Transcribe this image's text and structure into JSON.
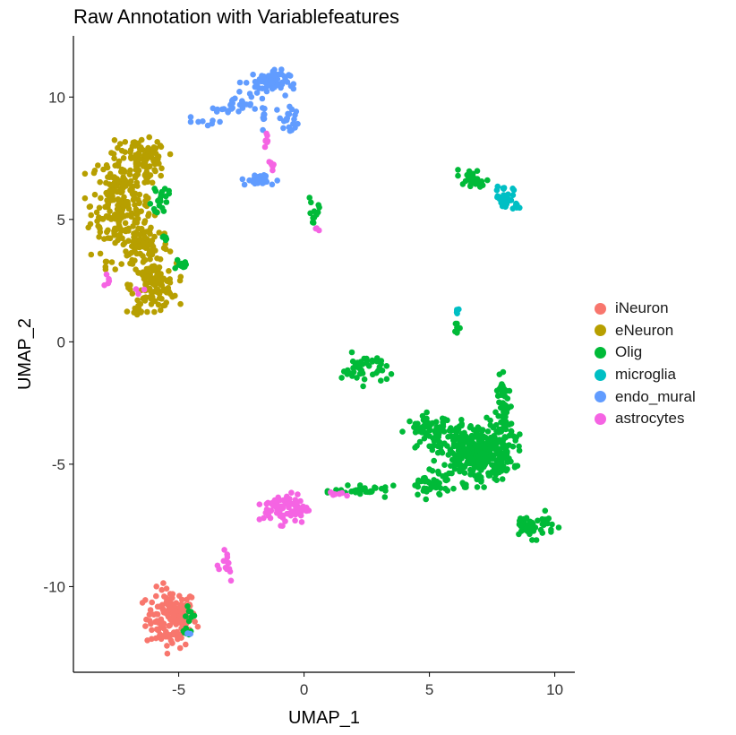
{
  "title": "Raw Annotation with Variablefeatures",
  "colors": {
    "iNeuron": "#F8766D",
    "eNeuron": "#B79F00",
    "Olig": "#00BA38",
    "microglia": "#00BFC4",
    "endo_mural": "#619CFF",
    "astrocytes": "#F564E3"
  },
  "chart_data": {
    "type": "scatter",
    "title": "Raw Annotation with Variablefeatures",
    "xlabel": "UMAP_1",
    "ylabel": "UMAP_2",
    "xlim": [
      -9.2,
      10.8
    ],
    "ylim": [
      -13.5,
      12.5
    ],
    "xticks": [
      -5,
      0,
      5,
      10
    ],
    "yticks": [
      -10,
      -5,
      0,
      5,
      10
    ],
    "grid": false,
    "legend_position": "right",
    "legend": [
      "iNeuron",
      "eNeuron",
      "Olig",
      "microglia",
      "endo_mural",
      "astrocytes"
    ],
    "series": [
      {
        "name": "iNeuron",
        "color": "#F8766D",
        "clusters": [
          {
            "cx": -5.3,
            "cy": -11.3,
            "rx": 1.0,
            "ry": 1.2,
            "n": 150
          }
        ]
      },
      {
        "name": "eNeuron",
        "color": "#B79F00",
        "clusters": [
          {
            "cx": -7.3,
            "cy": 5.6,
            "rx": 1.2,
            "ry": 2.2,
            "n": 250
          },
          {
            "cx": -6.3,
            "cy": 7.4,
            "rx": 0.8,
            "ry": 0.8,
            "n": 80
          },
          {
            "cx": -6.0,
            "cy": 2.3,
            "rx": 0.9,
            "ry": 0.9,
            "n": 120
          },
          {
            "cx": -6.3,
            "cy": 4.0,
            "rx": 0.9,
            "ry": 1.0,
            "n": 80
          },
          {
            "cx": -6.7,
            "cy": 1.2,
            "rx": 0.3,
            "ry": 0.3,
            "n": 8
          }
        ]
      },
      {
        "name": "Olig",
        "color": "#00BA38",
        "clusters": [
          {
            "cx": 6.8,
            "cy": -4.5,
            "rx": 1.5,
            "ry": 1.2,
            "n": 350
          },
          {
            "cx": 8.0,
            "cy": -3.0,
            "rx": 0.3,
            "ry": 1.6,
            "n": 70
          },
          {
            "cx": 5.0,
            "cy": -3.6,
            "rx": 0.9,
            "ry": 0.6,
            "n": 60
          },
          {
            "cx": 2.4,
            "cy": -1.1,
            "rx": 0.9,
            "ry": 0.6,
            "n": 45
          },
          {
            "cx": 9.1,
            "cy": -7.5,
            "rx": 0.9,
            "ry": 0.5,
            "n": 45
          },
          {
            "cx": 2.5,
            "cy": -6.1,
            "rx": 1.3,
            "ry": 0.2,
            "n": 30
          },
          {
            "cx": 5.0,
            "cy": -5.9,
            "rx": 0.8,
            "ry": 0.5,
            "n": 40
          },
          {
            "cx": 6.8,
            "cy": 6.5,
            "rx": 0.7,
            "ry": 0.4,
            "n": 20
          },
          {
            "cx": 6.1,
            "cy": 0.6,
            "rx": 0.1,
            "ry": 0.4,
            "n": 8
          },
          {
            "cx": -5.8,
            "cy": 5.7,
            "rx": 0.3,
            "ry": 0.6,
            "n": 15
          },
          {
            "cx": -4.9,
            "cy": 3.1,
            "rx": 0.2,
            "ry": 0.2,
            "n": 10
          },
          {
            "cx": -4.6,
            "cy": -11.4,
            "rx": 0.2,
            "ry": 0.5,
            "n": 12
          },
          {
            "cx": 0.4,
            "cy": 5.3,
            "rx": 0.3,
            "ry": 0.7,
            "n": 12
          },
          {
            "cx": -5.5,
            "cy": 4.3,
            "rx": 0.2,
            "ry": 0.2,
            "n": 5
          },
          {
            "cx": -4.8,
            "cy": -11.9,
            "rx": 0.15,
            "ry": 0.15,
            "n": 3
          },
          {
            "cx": -5.5,
            "cy": 6.2,
            "rx": 0.3,
            "ry": 0.2,
            "n": 5
          },
          {
            "cx": 6.5,
            "cy": 6.9,
            "rx": 0.3,
            "ry": 0.2,
            "n": 6
          }
        ]
      },
      {
        "name": "microglia",
        "color": "#00BFC4",
        "clusters": [
          {
            "cx": 8.0,
            "cy": 5.9,
            "rx": 0.35,
            "ry": 0.5,
            "n": 40
          },
          {
            "cx": 8.5,
            "cy": 5.5,
            "rx": 0.15,
            "ry": 0.2,
            "n": 6
          },
          {
            "cx": 6.1,
            "cy": 1.3,
            "rx": 0.12,
            "ry": 0.12,
            "n": 5
          }
        ]
      },
      {
        "name": "endo_mural",
        "color": "#619CFF",
        "clusters": [
          {
            "cx": -1.5,
            "cy": 10.6,
            "rx": 0.9,
            "ry": 0.5,
            "n": 60
          },
          {
            "cx": -2.8,
            "cy": 9.6,
            "rx": 0.7,
            "ry": 0.4,
            "n": 25
          },
          {
            "cx": -0.6,
            "cy": 9.0,
            "rx": 0.4,
            "ry": 0.6,
            "n": 20
          },
          {
            "cx": -1.8,
            "cy": 6.6,
            "rx": 0.7,
            "ry": 0.25,
            "n": 25
          },
          {
            "cx": -1.6,
            "cy": 9.3,
            "rx": 0.15,
            "ry": 0.6,
            "n": 10
          },
          {
            "cx": -3.8,
            "cy": 9.0,
            "rx": 0.6,
            "ry": 0.2,
            "n": 8
          },
          {
            "cx": -4.7,
            "cy": -11.9,
            "rx": 0.15,
            "ry": 0.15,
            "n": 3
          }
        ]
      },
      {
        "name": "astrocytes",
        "color": "#F564E3",
        "clusters": [
          {
            "cx": -0.7,
            "cy": -6.8,
            "rx": 0.9,
            "ry": 0.6,
            "n": 80
          },
          {
            "cx": -3.2,
            "cy": -9.0,
            "rx": 0.5,
            "ry": 0.8,
            "n": 14
          },
          {
            "cx": 1.3,
            "cy": -6.2,
            "rx": 0.6,
            "ry": 0.1,
            "n": 8
          },
          {
            "cx": -1.5,
            "cy": 8.3,
            "rx": 0.1,
            "ry": 0.4,
            "n": 8
          },
          {
            "cx": -1.3,
            "cy": 7.2,
            "rx": 0.1,
            "ry": 0.35,
            "n": 6
          },
          {
            "cx": -7.8,
            "cy": 2.5,
            "rx": 0.3,
            "ry": 0.3,
            "n": 5
          },
          {
            "cx": -6.5,
            "cy": 2.1,
            "rx": 0.2,
            "ry": 0.2,
            "n": 3
          },
          {
            "cx": 0.5,
            "cy": 4.6,
            "rx": 0.15,
            "ry": 0.1,
            "n": 3
          }
        ]
      }
    ]
  }
}
